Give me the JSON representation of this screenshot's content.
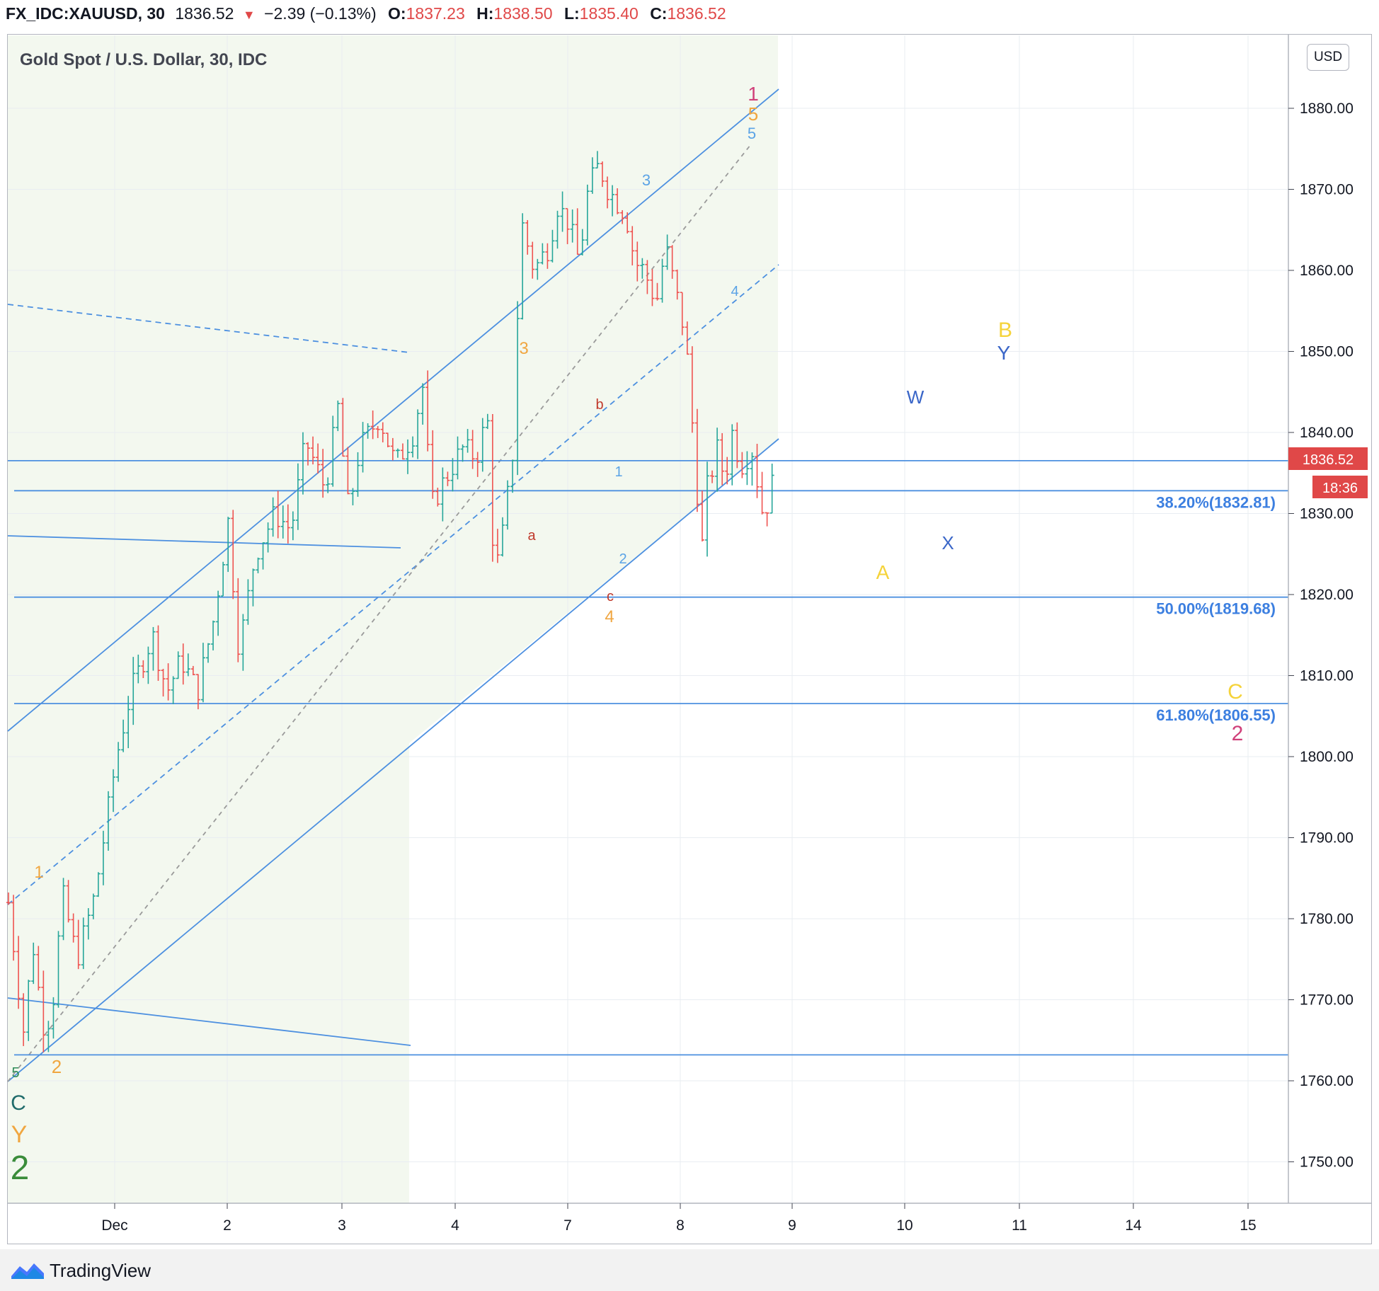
{
  "header": {
    "symbol": "FX_IDC:XAUUSD, 30",
    "last": "1836.52",
    "arrow": "▼",
    "change": "−2.39 (−0.13%)",
    "o_label": "O:",
    "o_value": "1837.23",
    "h_label": "H:",
    "h_value": "1838.50",
    "l_label": "L:",
    "l_value": "1835.40",
    "c_label": "C:",
    "c_value": "1836.52"
  },
  "chart_title": "Gold Spot / U.S. Dollar, 30, IDC",
  "currency_badge": "USD",
  "price_tag": "1836.52",
  "countdown_tag": "18:36",
  "footer_brand": "TradingView",
  "colors": {
    "up": "#26a69a",
    "down": "#ef5350",
    "line_blue": "#4d90e0",
    "fib_text": "#3c7fe0",
    "price_tag_bg": "#e04848",
    "channel_fill": "#f3f8ef"
  },
  "chart_data": {
    "type": "candlestick",
    "title": "Gold Spot / U.S. Dollar, 30, IDC",
    "ylim": [
      1741,
      1888
    ],
    "y_ticks": [
      "1880.00",
      "1870.00",
      "1860.00",
      "1850.00",
      "1840.00",
      "1830.00",
      "1820.00",
      "1810.00",
      "1800.00",
      "1790.00",
      "1780.00",
      "1770.00",
      "1760.00",
      "1750.00"
    ],
    "x_ticks": [
      "Dec",
      "2",
      "3",
      "4",
      "7",
      "8",
      "9",
      "10",
      "11",
      "14",
      "15"
    ],
    "price_path": [
      [
        0.0,
        1782
      ],
      [
        0.18,
        1765
      ],
      [
        0.26,
        1778
      ],
      [
        0.38,
        1767
      ],
      [
        0.48,
        1768
      ],
      [
        0.6,
        1783
      ],
      [
        0.76,
        1775
      ],
      [
        0.96,
        1783
      ],
      [
        1.2,
        1800
      ],
      [
        1.36,
        1808
      ],
      [
        1.6,
        1815
      ],
      [
        1.76,
        1808
      ],
      [
        1.92,
        1812
      ],
      [
        2.1,
        1808
      ],
      [
        2.28,
        1817
      ],
      [
        2.44,
        1829
      ],
      [
        2.56,
        1813
      ],
      [
        2.74,
        1825
      ],
      [
        2.96,
        1830
      ],
      [
        3.14,
        1828
      ],
      [
        3.3,
        1839
      ],
      [
        3.52,
        1833
      ],
      [
        3.66,
        1843
      ],
      [
        3.78,
        1830
      ],
      [
        3.9,
        1838
      ],
      [
        4.12,
        1842
      ],
      [
        4.3,
        1836
      ],
      [
        4.5,
        1840
      ],
      [
        4.6,
        1846
      ],
      [
        4.7,
        1831
      ],
      [
        4.84,
        1834
      ],
      [
        5.04,
        1838
      ],
      [
        5.2,
        1837
      ],
      [
        5.32,
        1842
      ],
      [
        5.4,
        1822
      ],
      [
        5.5,
        1828
      ],
      [
        5.6,
        1837
      ],
      [
        5.62,
        1845
      ],
      [
        5.7,
        1866
      ],
      [
        5.84,
        1860
      ],
      [
        6.0,
        1863
      ],
      [
        6.1,
        1868
      ],
      [
        6.22,
        1866
      ],
      [
        6.34,
        1861
      ],
      [
        6.44,
        1870
      ],
      [
        6.56,
        1873
      ],
      [
        6.66,
        1870
      ],
      [
        6.86,
        1867
      ],
      [
        6.96,
        1861
      ],
      [
        7.06,
        1860
      ],
      [
        7.2,
        1856
      ],
      [
        7.3,
        1863
      ],
      [
        7.4,
        1858
      ],
      [
        7.52,
        1852
      ],
      [
        7.62,
        1838
      ],
      [
        7.7,
        1825
      ],
      [
        7.76,
        1833
      ],
      [
        7.88,
        1838
      ],
      [
        7.96,
        1834
      ],
      [
        8.04,
        1840
      ],
      [
        8.14,
        1836
      ],
      [
        8.26,
        1838
      ],
      [
        8.38,
        1830
      ],
      [
        8.46,
        1832
      ],
      [
        8.54,
        1837
      ]
    ],
    "swing_levels": [
      1764.6,
      1823,
      1818.5,
      1831.5,
      1838.5,
      1821.5,
      1869.5,
      1876,
      1825
    ],
    "horizontal_lines": [
      1836.52,
      1832.81,
      1819.68,
      1806.55,
      1763.2
    ],
    "fibonacci": [
      {
        "label": "38.20%(1832.81)",
        "value": 1832.81
      },
      {
        "label": "50.00%(1819.68)",
        "value": 1819.68
      },
      {
        "label": "61.80%(1806.55)",
        "value": 1806.55
      }
    ],
    "wave_labels": [
      {
        "text": "1",
        "color": "#d0407a"
      },
      {
        "text": "5",
        "color": "#f0a640"
      },
      {
        "text": "5",
        "color": "#5ba3e6"
      },
      {
        "text": "3",
        "color": "#5ba3e6"
      },
      {
        "text": "4",
        "color": "#5ba3e6"
      },
      {
        "text": "3",
        "color": "#f0a640"
      },
      {
        "text": "b",
        "color": "#c0392b"
      },
      {
        "text": "a",
        "color": "#c0392b"
      },
      {
        "text": "1",
        "color": "#5ba3e6"
      },
      {
        "text": "2",
        "color": "#5ba3e6"
      },
      {
        "text": "c",
        "color": "#c0392b"
      },
      {
        "text": "4",
        "color": "#f0a640"
      },
      {
        "text": "1",
        "color": "#f0a640"
      },
      {
        "text": "2",
        "color": "#f0a640"
      },
      {
        "text": "5",
        "color": "#2e8b57"
      },
      {
        "text": "C",
        "color": "#1f6b6b"
      },
      {
        "text": "Y",
        "color": "#f0a640"
      },
      {
        "text": "2",
        "color": "#3a8c3a"
      },
      {
        "text": "B",
        "color": "#f5d33a"
      },
      {
        "text": "Y",
        "color": "#3a66c8"
      },
      {
        "text": "W",
        "color": "#3a66c8"
      },
      {
        "text": "X",
        "color": "#3a66c8"
      },
      {
        "text": "A",
        "color": "#f5d33a"
      },
      {
        "text": "C",
        "color": "#f5d33a"
      },
      {
        "text": "2",
        "color": "#d0407a"
      }
    ]
  }
}
